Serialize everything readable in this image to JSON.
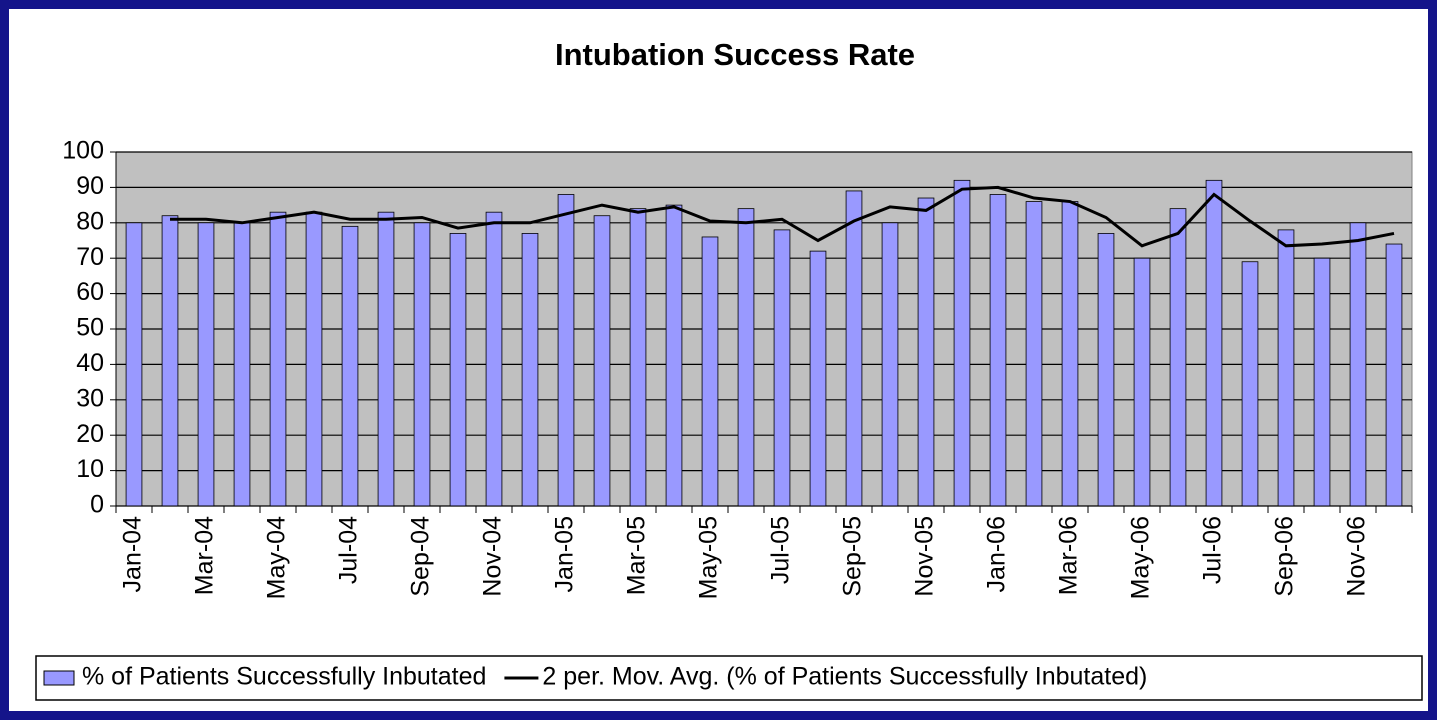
{
  "chart_data": {
    "type": "bar",
    "title": "Intubation Success Rate",
    "categories": [
      "Jan-04",
      null,
      "Mar-04",
      null,
      "May-04",
      null,
      "Jul-04",
      null,
      "Sep-04",
      null,
      "Nov-04",
      null,
      "Jan-05",
      null,
      "Mar-05",
      null,
      "May-05",
      null,
      "Jul-05",
      null,
      "Sep-05",
      null,
      "Nov-05",
      null,
      "Jan-06",
      null,
      "Mar-06",
      null,
      "May-06",
      null,
      "Jul-06",
      null,
      "Sep-06",
      null,
      "Nov-06",
      null
    ],
    "series": [
      {
        "name": "% of Patients Successfully Inbutated",
        "type": "bar",
        "color": "#9999ff",
        "values": [
          80,
          82,
          80,
          80,
          83,
          83,
          79,
          83,
          80,
          77,
          83,
          77,
          88,
          82,
          84,
          85,
          76,
          84,
          78,
          72,
          89,
          80,
          87,
          92,
          88,
          86,
          86,
          77,
          70,
          84,
          92,
          69,
          78,
          70,
          80,
          74
        ]
      },
      {
        "name": "2 per. Mov. Avg. (% of Patients Successfully Inbutated)",
        "type": "line",
        "color": "#000000",
        "values": [
          null,
          81,
          81,
          80,
          81.5,
          83,
          81,
          81,
          81.5,
          78.5,
          80,
          80,
          82.5,
          85,
          83,
          84.5,
          80.5,
          80,
          81,
          75,
          80.5,
          84.5,
          83.5,
          89.5,
          90,
          87,
          86,
          81.5,
          73.5,
          77,
          88,
          80.5,
          73.5,
          74,
          75,
          77
        ]
      }
    ],
    "ylim": [
      0,
      100
    ],
    "yticks": [
      0,
      10,
      20,
      30,
      40,
      50,
      60,
      70,
      80,
      90,
      100
    ],
    "grid": true,
    "legend": "bottom"
  }
}
